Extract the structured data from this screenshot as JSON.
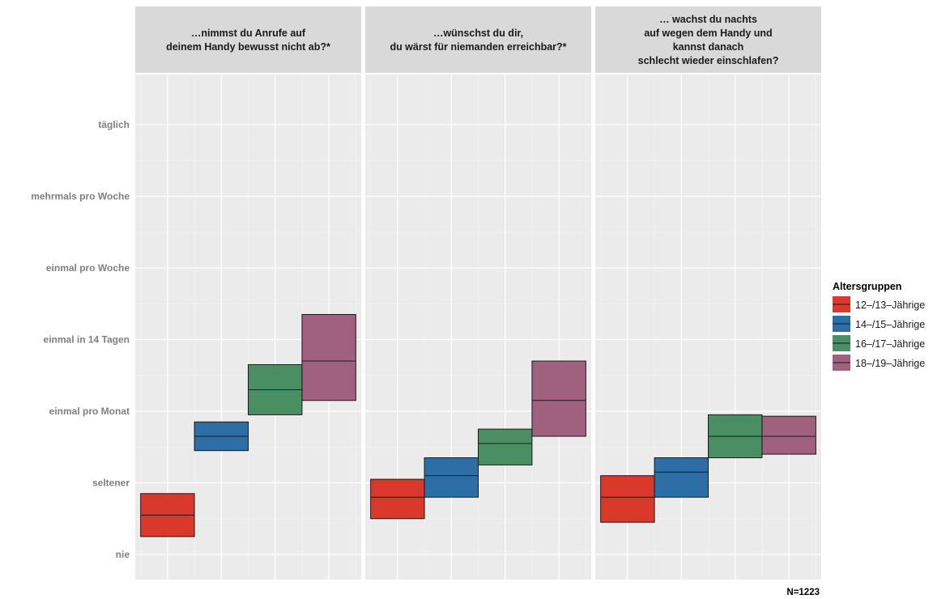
{
  "chart_data": {
    "type": "crossbar",
    "facets": [
      {
        "title_lines": [
          "…nimmst du Anrufe auf",
          "deinem Handy bewusst nicht ab?*"
        ],
        "series_values": [
          {
            "low": 0.25,
            "mid": 0.55,
            "high": 0.85
          },
          {
            "low": 1.45,
            "mid": 1.65,
            "high": 1.85
          },
          {
            "low": 1.95,
            "mid": 2.3,
            "high": 2.65
          },
          {
            "low": 2.15,
            "mid": 2.7,
            "high": 3.35
          }
        ]
      },
      {
        "title_lines": [
          "…wünschst du dir,",
          "du wärst für niemanden erreichbar?*"
        ],
        "series_values": [
          {
            "low": 0.5,
            "mid": 0.8,
            "high": 1.05
          },
          {
            "low": 0.8,
            "mid": 1.1,
            "high": 1.35
          },
          {
            "low": 1.25,
            "mid": 1.55,
            "high": 1.75
          },
          {
            "low": 1.65,
            "mid": 2.15,
            "high": 2.7
          }
        ]
      },
      {
        "title_lines": [
          "… wachst du nachts",
          "auf wegen dem Handy und",
          "kannst danach",
          "schlecht wieder einschlafen?"
        ],
        "series_values": [
          {
            "low": 0.45,
            "mid": 0.8,
            "high": 1.1
          },
          {
            "low": 0.8,
            "mid": 1.15,
            "high": 1.35
          },
          {
            "low": 1.35,
            "mid": 1.65,
            "high": 1.95
          },
          {
            "low": 1.4,
            "mid": 1.65,
            "high": 1.93
          }
        ]
      }
    ],
    "y_ticks": [
      {
        "value": 0,
        "label": "nie"
      },
      {
        "value": 1,
        "label": "seltener"
      },
      {
        "value": 2,
        "label": "einmal pro Monat"
      },
      {
        "value": 3,
        "label": "einmal in 14 Tagen"
      },
      {
        "value": 4,
        "label": "einmal pro Woche"
      },
      {
        "value": 5,
        "label": "mehrmals pro Woche"
      },
      {
        "value": 6,
        "label": "täglich"
      }
    ],
    "ylim": [
      -0.35,
      6.7
    ],
    "legend": {
      "title": "Altersgruppen",
      "position": "right",
      "items": [
        {
          "label": "12–/13–Jährige",
          "color": "#d9382a"
        },
        {
          "label": "14–/15–Jährige",
          "color": "#2e6ea6"
        },
        {
          "label": "16–/17–Jährige",
          "color": "#4a8f63"
        },
        {
          "label": "18–/19–Jährige",
          "color": "#a0617f"
        }
      ]
    },
    "caption": "N=1223",
    "grid": true
  },
  "colors": {
    "panel_bg": "#ebebeb",
    "strip_bg": "#d9d9d9",
    "grid_major": "#ffffff",
    "grid_minor": "#f2f2f2"
  }
}
